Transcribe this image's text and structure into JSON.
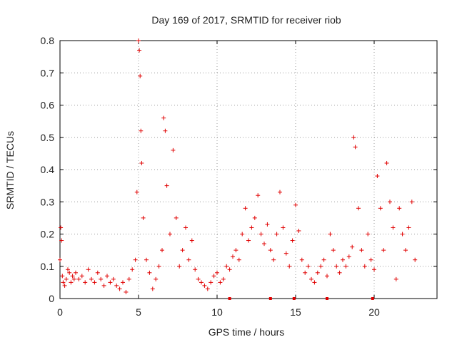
{
  "chart_data": {
    "type": "scatter",
    "title": "Day 169 of 2017, SRMTID for receiver riob",
    "xlabel": "GPS time / hours",
    "ylabel": "SRMTID / TECUs",
    "xlim": [
      0,
      24
    ],
    "ylim": [
      0,
      0.8
    ],
    "x_ticks": [
      0,
      5,
      10,
      15,
      20
    ],
    "x_tick_labels": [
      "0",
      "5",
      "10",
      "15",
      "20"
    ],
    "y_ticks": [
      0,
      0.1,
      0.2,
      0.3,
      0.4,
      0.5,
      0.6,
      0.7,
      0.8
    ],
    "y_tick_labels": [
      "0",
      "0.1",
      "0.2",
      "0.3",
      "0.4",
      "0.5",
      "0.6",
      "0.7",
      "0.8"
    ],
    "grid": true,
    "marker": "+",
    "series_color": "#e00000",
    "series": [
      {
        "name": "SRMTID",
        "x": [
          0.0,
          0.05,
          0.1,
          0.15,
          0.2,
          0.3,
          0.4,
          0.5,
          0.6,
          0.7,
          0.8,
          0.9,
          1.0,
          1.2,
          1.4,
          1.6,
          1.8,
          2.0,
          2.2,
          2.4,
          2.6,
          2.8,
          3.0,
          3.2,
          3.4,
          3.6,
          3.8,
          4.0,
          4.2,
          4.4,
          4.6,
          4.8,
          4.9,
          5.0,
          5.05,
          5.1,
          5.15,
          5.2,
          5.3,
          5.5,
          5.7,
          5.9,
          6.1,
          6.3,
          6.5,
          6.6,
          6.7,
          6.8,
          7.0,
          7.2,
          7.4,
          7.6,
          7.8,
          8.0,
          8.2,
          8.4,
          8.6,
          8.8,
          9.0,
          9.2,
          9.4,
          9.6,
          9.8,
          10.0,
          10.2,
          10.4,
          10.6,
          10.8,
          11.0,
          11.2,
          11.4,
          11.6,
          11.8,
          12.0,
          12.2,
          12.4,
          12.6,
          12.8,
          13.0,
          13.2,
          13.4,
          13.6,
          13.8,
          14.0,
          14.2,
          14.4,
          14.6,
          14.8,
          15.0,
          15.2,
          15.4,
          15.6,
          15.8,
          16.0,
          16.2,
          16.4,
          16.6,
          16.8,
          17.0,
          17.2,
          17.4,
          17.6,
          17.8,
          18.0,
          18.2,
          18.4,
          18.6,
          18.7,
          18.8,
          19.0,
          19.2,
          19.4,
          19.6,
          19.8,
          20.0,
          20.2,
          20.4,
          20.6,
          20.8,
          21.0,
          21.2,
          21.4,
          21.6,
          21.8,
          22.0,
          22.2,
          22.4,
          22.6
        ],
        "y": [
          0.12,
          0.22,
          0.18,
          0.07,
          0.05,
          0.04,
          0.06,
          0.09,
          0.08,
          0.05,
          0.07,
          0.06,
          0.08,
          0.06,
          0.07,
          0.05,
          0.09,
          0.06,
          0.05,
          0.08,
          0.06,
          0.04,
          0.07,
          0.05,
          0.06,
          0.04,
          0.03,
          0.05,
          0.02,
          0.06,
          0.09,
          0.12,
          0.33,
          0.8,
          0.77,
          0.69,
          0.52,
          0.42,
          0.25,
          0.12,
          0.08,
          0.03,
          0.06,
          0.1,
          0.15,
          0.56,
          0.52,
          0.35,
          0.2,
          0.46,
          0.25,
          0.1,
          0.15,
          0.22,
          0.12,
          0.18,
          0.09,
          0.06,
          0.05,
          0.04,
          0.03,
          0.05,
          0.07,
          0.08,
          0.05,
          0.06,
          0.1,
          0.09,
          0.13,
          0.15,
          0.12,
          0.2,
          0.28,
          0.18,
          0.22,
          0.25,
          0.32,
          0.2,
          0.17,
          0.23,
          0.15,
          0.12,
          0.2,
          0.33,
          0.22,
          0.14,
          0.1,
          0.18,
          0.29,
          0.21,
          0.12,
          0.08,
          0.1,
          0.06,
          0.05,
          0.08,
          0.1,
          0.12,
          0.07,
          0.2,
          0.15,
          0.1,
          0.08,
          0.12,
          0.1,
          0.13,
          0.16,
          0.5,
          0.47,
          0.28,
          0.15,
          0.1,
          0.2,
          0.12,
          0.09,
          0.38,
          0.28,
          0.15,
          0.42,
          0.3,
          0.22,
          0.06,
          0.28,
          0.2,
          0.15,
          0.22,
          0.3,
          0.12
        ],
        "gap_markers_x": [
          10.8,
          13.4,
          14.9,
          17.0,
          19.9
        ]
      }
    ]
  }
}
